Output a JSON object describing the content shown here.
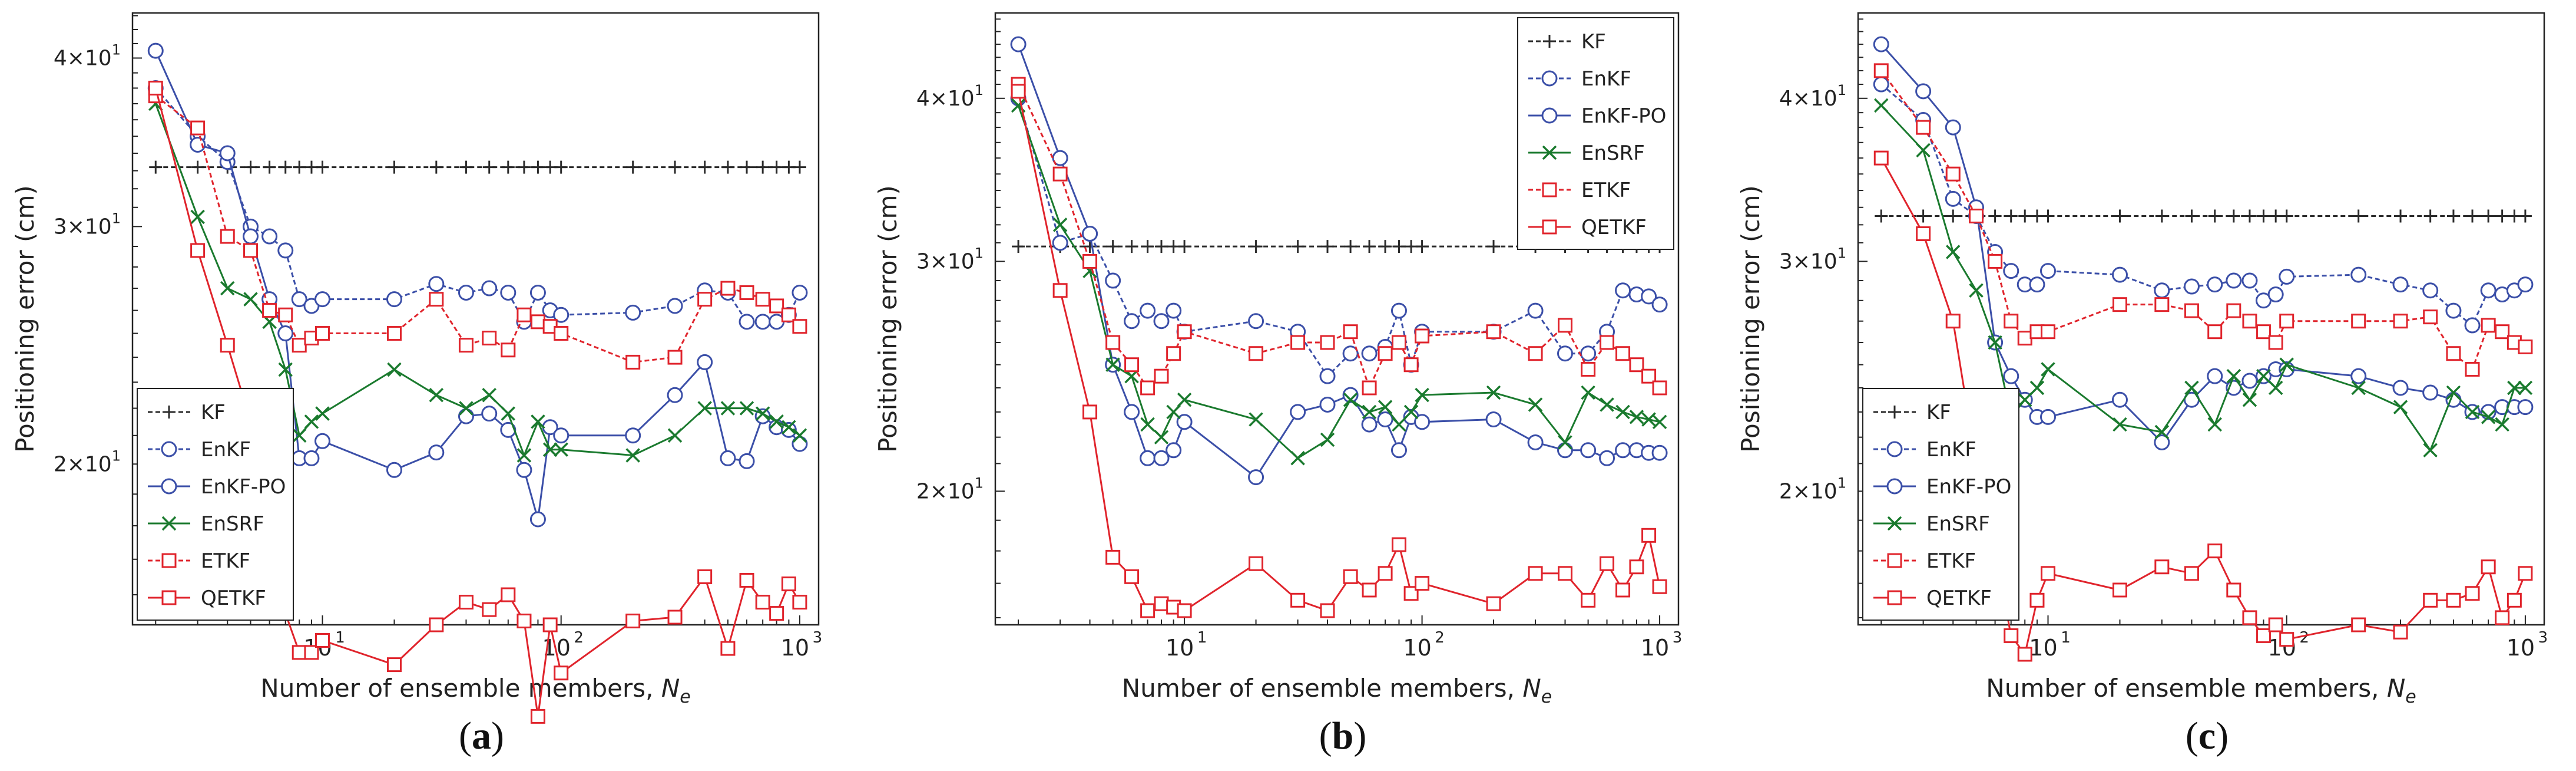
{
  "chart_data": [
    {
      "type": "line",
      "panel_label": "(a)",
      "xlabel": "Number of ensemble members, N_e",
      "ylabel": "Positioning error (cm)",
      "xscale": "log",
      "yscale": "log",
      "xlim": [
        1.6,
        1200
      ],
      "ylim": [
        15.2,
        43.2
      ],
      "xticks": [
        10,
        100,
        1000
      ],
      "yticks": [
        20,
        30,
        40
      ],
      "legend_location": "bottom-left",
      "x": [
        2,
        3,
        4,
        5,
        6,
        7,
        8,
        9,
        10,
        20,
        30,
        40,
        50,
        60,
        70,
        80,
        90,
        100,
        200,
        300,
        400,
        500,
        600,
        700,
        800,
        900,
        1000
      ],
      "series": [
        {
          "name": "KF",
          "color": "#2b2b2b",
          "dash": "8,5",
          "marker": "plus",
          "values": [
            33.2,
            33.2,
            33.2,
            33.2,
            33.2,
            33.2,
            33.2,
            33.2,
            33.2,
            33.2,
            33.2,
            33.2,
            33.2,
            33.2,
            33.2,
            33.2,
            33.2,
            33.2,
            33.2,
            33.2,
            33.2,
            33.2,
            33.2,
            33.2,
            33.2,
            33.2,
            33.2
          ]
        },
        {
          "name": "EnKF",
          "color": "#3b4fa8",
          "dash": "8,5",
          "marker": "circle",
          "values": [
            38.0,
            35.0,
            33.5,
            30.0,
            29.5,
            28.8,
            26.5,
            26.2,
            26.5,
            26.5,
            27.2,
            26.8,
            27.0,
            26.8,
            25.5,
            26.8,
            26.0,
            25.8,
            25.9,
            26.2,
            26.9,
            26.8,
            25.5,
            25.5,
            25.5,
            25.8,
            26.8
          ]
        },
        {
          "name": "EnKF-PO",
          "color": "#3b4fa8",
          "dash": "",
          "marker": "circle",
          "values": [
            40.5,
            34.5,
            34.0,
            29.5,
            26.5,
            25.0,
            20.2,
            20.2,
            20.8,
            19.8,
            20.4,
            21.7,
            21.8,
            21.2,
            19.8,
            18.2,
            21.3,
            21.0,
            21.0,
            22.5,
            23.8,
            20.2,
            20.1,
            21.7,
            21.3,
            21.2,
            20.7
          ]
        },
        {
          "name": "EnSRF",
          "color": "#1a7a2e",
          "dash": "",
          "marker": "x",
          "values": [
            37.0,
            30.5,
            27.0,
            26.5,
            25.5,
            23.5,
            21.0,
            21.5,
            21.8,
            23.5,
            22.5,
            22.0,
            22.5,
            21.8,
            20.3,
            21.5,
            20.5,
            20.5,
            20.3,
            21.0,
            22.0,
            22.0,
            22.0,
            21.8,
            21.5,
            21.3,
            21.0
          ]
        },
        {
          "name": "ETKF",
          "color": "#e0242c",
          "dash": "8,5",
          "marker": "square",
          "values": [
            37.5,
            35.5,
            29.5,
            28.8,
            26.0,
            25.8,
            24.5,
            24.8,
            25.0,
            25.0,
            26.5,
            24.5,
            24.8,
            24.3,
            25.8,
            25.5,
            25.3,
            25.0,
            23.8,
            24.0,
            26.5,
            27.0,
            26.8,
            26.5,
            26.2,
            25.8,
            25.3
          ]
        },
        {
          "name": "QETKF",
          "color": "#e0242c",
          "dash": "",
          "marker": "square",
          "values": [
            38.0,
            28.8,
            24.5,
            21.5,
            18.5,
            15.5,
            14.5,
            14.5,
            14.8,
            14.2,
            15.2,
            15.8,
            15.6,
            16.0,
            15.3,
            13.0,
            15.2,
            14.0,
            15.3,
            15.4,
            16.5,
            14.6,
            16.4,
            15.8,
            15.5,
            16.3,
            15.8
          ]
        }
      ]
    },
    {
      "type": "line",
      "panel_label": "(b)",
      "xlabel": "Number of ensemble members, N_e",
      "ylabel": "Positioning error (cm)",
      "xscale": "log",
      "yscale": "log",
      "xlim": [
        1.6,
        1200
      ],
      "ylim": [
        15.8,
        46.5
      ],
      "xticks": [
        10,
        100,
        1000
      ],
      "yticks": [
        20,
        30,
        40
      ],
      "legend_location": "top-right",
      "x": [
        2,
        3,
        4,
        5,
        6,
        7,
        8,
        9,
        10,
        20,
        30,
        40,
        50,
        60,
        70,
        80,
        90,
        100,
        200,
        300,
        400,
        500,
        600,
        700,
        800,
        900,
        1000
      ],
      "series": [
        {
          "name": "KF",
          "color": "#2b2b2b",
          "dash": "8,5",
          "marker": "plus",
          "values": [
            30.8,
            30.8,
            30.8,
            30.8,
            30.8,
            30.8,
            30.8,
            30.8,
            30.8,
            30.8,
            30.8,
            30.8,
            30.8,
            30.8,
            30.8,
            30.8,
            30.8,
            30.8,
            30.8,
            30.8,
            30.8,
            30.8,
            30.8,
            30.8,
            30.8,
            30.8,
            30.8
          ]
        },
        {
          "name": "EnKF",
          "color": "#3b4fa8",
          "dash": "8,5",
          "marker": "circle",
          "values": [
            40.0,
            31.0,
            31.5,
            29.0,
            27.0,
            27.5,
            27.0,
            27.5,
            26.5,
            27.0,
            26.5,
            24.5,
            25.5,
            25.5,
            25.8,
            27.5,
            25.0,
            26.5,
            26.5,
            27.5,
            25.5,
            25.5,
            26.5,
            28.5,
            28.3,
            28.2,
            27.8
          ]
        },
        {
          "name": "EnKF-PO",
          "color": "#3b4fa8",
          "dash": "",
          "marker": "circle",
          "values": [
            44.0,
            36.0,
            31.5,
            25.0,
            23.0,
            21.2,
            21.2,
            21.5,
            22.6,
            20.5,
            23.0,
            23.3,
            23.7,
            22.5,
            22.7,
            21.5,
            22.8,
            22.6,
            22.7,
            21.8,
            21.5,
            21.5,
            21.2,
            21.5,
            21.5,
            21.4,
            21.4
          ]
        },
        {
          "name": "EnSRF",
          "color": "#1a7a2e",
          "dash": "",
          "marker": "x",
          "values": [
            39.5,
            32.0,
            29.5,
            25.0,
            24.5,
            22.5,
            22.0,
            23.0,
            23.5,
            22.7,
            21.2,
            21.9,
            23.5,
            23.0,
            23.2,
            22.5,
            23.0,
            23.7,
            23.8,
            23.3,
            21.8,
            23.8,
            23.3,
            23.0,
            22.8,
            22.7,
            22.6
          ]
        },
        {
          "name": "ETKF",
          "color": "#e0242c",
          "dash": "8,5",
          "marker": "square",
          "values": [
            41.0,
            35.0,
            30.0,
            26.0,
            25.0,
            24.0,
            24.5,
            25.5,
            26.5,
            25.5,
            26.0,
            26.0,
            26.5,
            24.0,
            25.5,
            26.0,
            25.0,
            26.3,
            26.5,
            25.5,
            26.8,
            24.8,
            26.0,
            25.5,
            25.0,
            24.5,
            24.0
          ]
        },
        {
          "name": "QETKF",
          "color": "#e0242c",
          "dash": "",
          "marker": "square",
          "values": [
            40.5,
            28.5,
            23.0,
            17.8,
            17.2,
            16.2,
            16.4,
            16.3,
            16.2,
            17.6,
            16.5,
            16.2,
            17.2,
            16.8,
            17.3,
            18.2,
            16.7,
            17.0,
            16.4,
            17.3,
            17.3,
            16.5,
            17.6,
            16.8,
            17.5,
            18.5,
            16.9
          ]
        }
      ]
    },
    {
      "type": "line",
      "panel_label": "(c)",
      "xlabel": "Number of ensemble members, N_e",
      "ylabel": "Positioning error (cm)",
      "xscale": "log",
      "yscale": "log",
      "xlim": [
        1.6,
        1200
      ],
      "ylim": [
        15.8,
        46.5
      ],
      "xticks": [
        10,
        100,
        1000
      ],
      "yticks": [
        20,
        30,
        40
      ],
      "legend_location": "bottom-left",
      "x": [
        2,
        3,
        4,
        5,
        6,
        7,
        8,
        9,
        10,
        20,
        30,
        40,
        50,
        60,
        70,
        80,
        90,
        100,
        200,
        300,
        400,
        500,
        600,
        700,
        800,
        900,
        1000
      ],
      "series": [
        {
          "name": "KF",
          "color": "#2b2b2b",
          "dash": "8,5",
          "marker": "plus",
          "values": [
            32.5,
            32.5,
            32.5,
            32.5,
            32.5,
            32.5,
            32.5,
            32.5,
            32.5,
            32.5,
            32.5,
            32.5,
            32.5,
            32.5,
            32.5,
            32.5,
            32.5,
            32.5,
            32.5,
            32.5,
            32.5,
            32.5,
            32.5,
            32.5,
            32.5,
            32.5,
            32.5
          ]
        },
        {
          "name": "EnKF",
          "color": "#3b4fa8",
          "dash": "8,5",
          "marker": "circle",
          "values": [
            41.0,
            38.5,
            33.5,
            32.5,
            30.5,
            29.5,
            28.8,
            28.8,
            29.5,
            29.3,
            28.5,
            28.7,
            28.8,
            29.0,
            29.0,
            28.0,
            28.3,
            29.2,
            29.3,
            28.8,
            28.5,
            27.5,
            26.8,
            28.5,
            28.3,
            28.5,
            28.8
          ]
        },
        {
          "name": "EnKF-PO",
          "color": "#3b4fa8",
          "dash": "",
          "marker": "circle",
          "values": [
            44.0,
            40.5,
            38.0,
            33.0,
            26.0,
            24.5,
            23.5,
            22.8,
            22.8,
            23.5,
            21.8,
            23.5,
            24.5,
            24.0,
            24.3,
            24.5,
            24.8,
            24.8,
            24.5,
            24.0,
            23.8,
            23.5,
            23.0,
            23.0,
            23.2,
            23.2,
            23.2
          ]
        },
        {
          "name": "EnSRF",
          "color": "#1a7a2e",
          "dash": "",
          "marker": "x",
          "values": [
            39.5,
            36.5,
            30.5,
            28.5,
            26.0,
            22.8,
            23.5,
            24.0,
            24.8,
            22.5,
            22.2,
            24.0,
            22.5,
            24.5,
            23.5,
            24.5,
            24.0,
            25.0,
            24.0,
            23.2,
            21.5,
            23.8,
            23.0,
            22.8,
            22.5,
            24.0,
            24.0
          ]
        },
        {
          "name": "ETKF",
          "color": "#e0242c",
          "dash": "8,5",
          "marker": "square",
          "values": [
            42.0,
            38.0,
            35.0,
            32.5,
            30.0,
            27.0,
            26.2,
            26.5,
            26.5,
            27.8,
            27.8,
            27.5,
            26.5,
            27.5,
            27.0,
            26.5,
            26.0,
            27.0,
            27.0,
            27.0,
            27.2,
            25.5,
            24.8,
            26.8,
            26.5,
            26.0,
            25.8
          ]
        },
        {
          "name": "QETKF",
          "color": "#e0242c",
          "dash": "",
          "marker": "square",
          "values": [
            36.0,
            31.5,
            27.0,
            21.0,
            18.0,
            15.5,
            15.0,
            16.5,
            17.3,
            16.8,
            17.5,
            17.3,
            18.0,
            16.8,
            16.0,
            15.5,
            15.8,
            15.4,
            15.8,
            15.6,
            16.5,
            16.5,
            16.7,
            17.5,
            16.0,
            16.5,
            17.3
          ]
        }
      ]
    }
  ],
  "captions": {
    "a": "(a)",
    "b": "(b)",
    "c": "(c)"
  }
}
